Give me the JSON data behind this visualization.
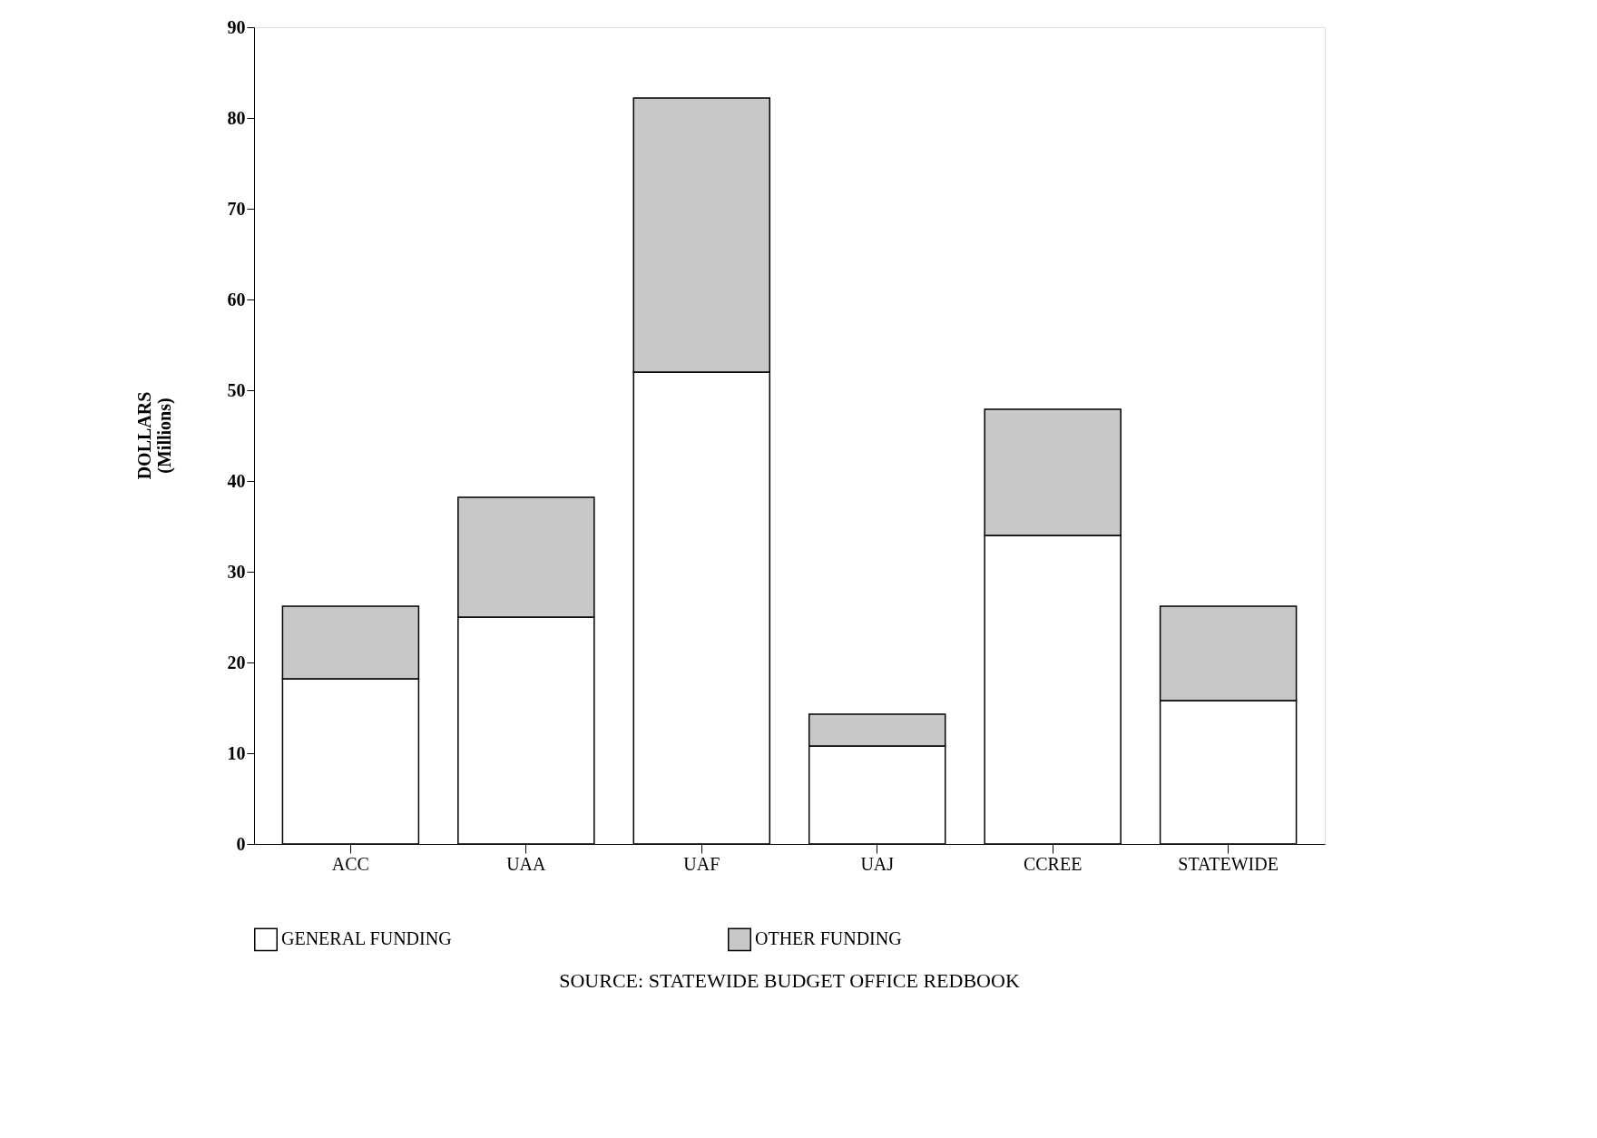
{
  "chart_data": {
    "type": "bar",
    "stacked": true,
    "categories": [
      "ACC",
      "UAA",
      "UAF",
      "UAJ",
      "CCREE",
      "STATEWIDE"
    ],
    "series": [
      {
        "name": "GENERAL FUNDING",
        "color": "#ffffff",
        "values": [
          18.2,
          25,
          52,
          10.8,
          34,
          15.8
        ]
      },
      {
        "name": "OTHER FUNDING",
        "color": "#c8c8c8",
        "values": [
          8,
          13.2,
          30.2,
          3.5,
          13.9,
          10.4
        ]
      }
    ],
    "ylabel": "DOLLARS\n(Millions)",
    "ylim": [
      0,
      90
    ],
    "yticks": [
      0,
      10,
      20,
      30,
      40,
      50,
      60,
      70,
      80,
      90
    ],
    "grid": false,
    "legend": "bottom",
    "annotations": [
      "SOURCE: STATEWIDE BUDGET OFFICE REDBOOK"
    ]
  }
}
